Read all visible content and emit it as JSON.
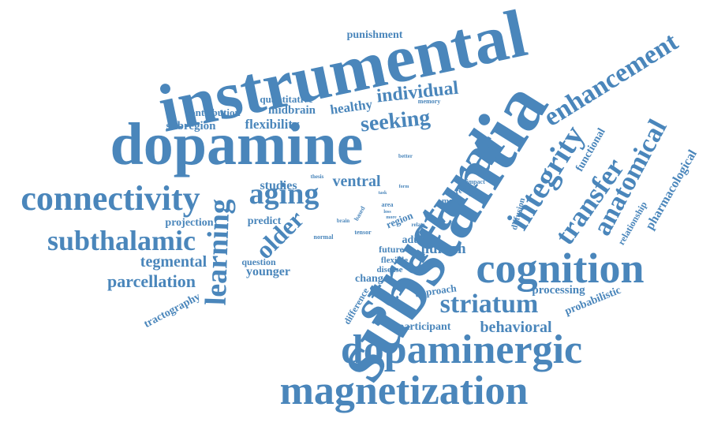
{
  "cloud": {
    "color": "#4a86bb",
    "words": [
      {
        "id": "substantia",
        "text": "substantia"
      },
      {
        "id": "instrumental",
        "text": "instrumental"
      },
      {
        "id": "dopamine",
        "text": "dopamine"
      },
      {
        "id": "structural",
        "text": "structural"
      },
      {
        "id": "dopaminergic",
        "text": "dopaminergic"
      },
      {
        "id": "magnetization",
        "text": "magnetization"
      },
      {
        "id": "cognition",
        "text": "cognition"
      },
      {
        "id": "connectivity",
        "text": "connectivity"
      },
      {
        "id": "subthalamic",
        "text": "subthalamic"
      },
      {
        "id": "enhancement",
        "text": "enhancement"
      },
      {
        "id": "integrity",
        "text": "integrity"
      },
      {
        "id": "transfer",
        "text": "transfer"
      },
      {
        "id": "anatomical",
        "text": "anatomical"
      },
      {
        "id": "learning",
        "text": "learning"
      },
      {
        "id": "aging",
        "text": "aging"
      },
      {
        "id": "striatum",
        "text": "striatum"
      },
      {
        "id": "older",
        "text": "older"
      },
      {
        "id": "seeking",
        "text": "seeking"
      },
      {
        "id": "individual",
        "text": "individual"
      },
      {
        "id": "parcellation",
        "text": "parcellation"
      },
      {
        "id": "tegmental",
        "text": "tegmental"
      },
      {
        "id": "ventral",
        "text": "ventral"
      },
      {
        "id": "studies",
        "text": "studies"
      },
      {
        "id": "flexibility",
        "text": "flexibility"
      },
      {
        "id": "subregion",
        "text": "subregion"
      },
      {
        "id": "midbrain",
        "text": "midbrain"
      },
      {
        "id": "contribution",
        "text": "contribution"
      },
      {
        "id": "quantitative",
        "text": "quantitative"
      },
      {
        "id": "healthy",
        "text": "healthy"
      },
      {
        "id": "punishment",
        "text": "punishment"
      },
      {
        "id": "behavioral",
        "text": "behavioral"
      },
      {
        "id": "human",
        "text": "human"
      },
      {
        "id": "processing",
        "text": "processing"
      },
      {
        "id": "younger",
        "text": "younger"
      },
      {
        "id": "projection",
        "text": "projection"
      },
      {
        "id": "predict",
        "text": "predict"
      },
      {
        "id": "question",
        "text": "question"
      },
      {
        "id": "change",
        "text": "change"
      },
      {
        "id": "approach",
        "text": "approach"
      },
      {
        "id": "participant",
        "text": "participant"
      },
      {
        "id": "adult",
        "text": "adult"
      },
      {
        "id": "region",
        "text": "region"
      },
      {
        "id": "future",
        "text": "future"
      },
      {
        "id": "flexible",
        "text": "flexible"
      },
      {
        "id": "disease",
        "text": "disease"
      },
      {
        "id": "tractography",
        "text": "tractography"
      },
      {
        "id": "difference",
        "text": "difference"
      },
      {
        "id": "probabilistic",
        "text": "probabilistic"
      },
      {
        "id": "pharmacological",
        "text": "pharmacological"
      },
      {
        "id": "relationship",
        "text": "relationship"
      },
      {
        "id": "functional",
        "text": "functional"
      },
      {
        "id": "diffusion",
        "text": "diffusion"
      },
      {
        "id": "many",
        "text": "many"
      },
      {
        "id": "precise",
        "text": "precise"
      },
      {
        "id": "impact",
        "text": "impact"
      },
      {
        "id": "memory",
        "text": "memory"
      },
      {
        "id": "better",
        "text": "better"
      },
      {
        "id": "thesis",
        "text": "thesis"
      },
      {
        "id": "task",
        "text": "task"
      },
      {
        "id": "form",
        "text": "form"
      },
      {
        "id": "area",
        "text": "area"
      },
      {
        "id": "loss",
        "text": "loss"
      },
      {
        "id": "more",
        "text": "more"
      },
      {
        "id": "based",
        "text": "based"
      },
      {
        "id": "brain",
        "text": "brain"
      },
      {
        "id": "relate",
        "text": "relate"
      },
      {
        "id": "tensor",
        "text": "tensor"
      },
      {
        "id": "normal",
        "text": "normal"
      }
    ]
  }
}
